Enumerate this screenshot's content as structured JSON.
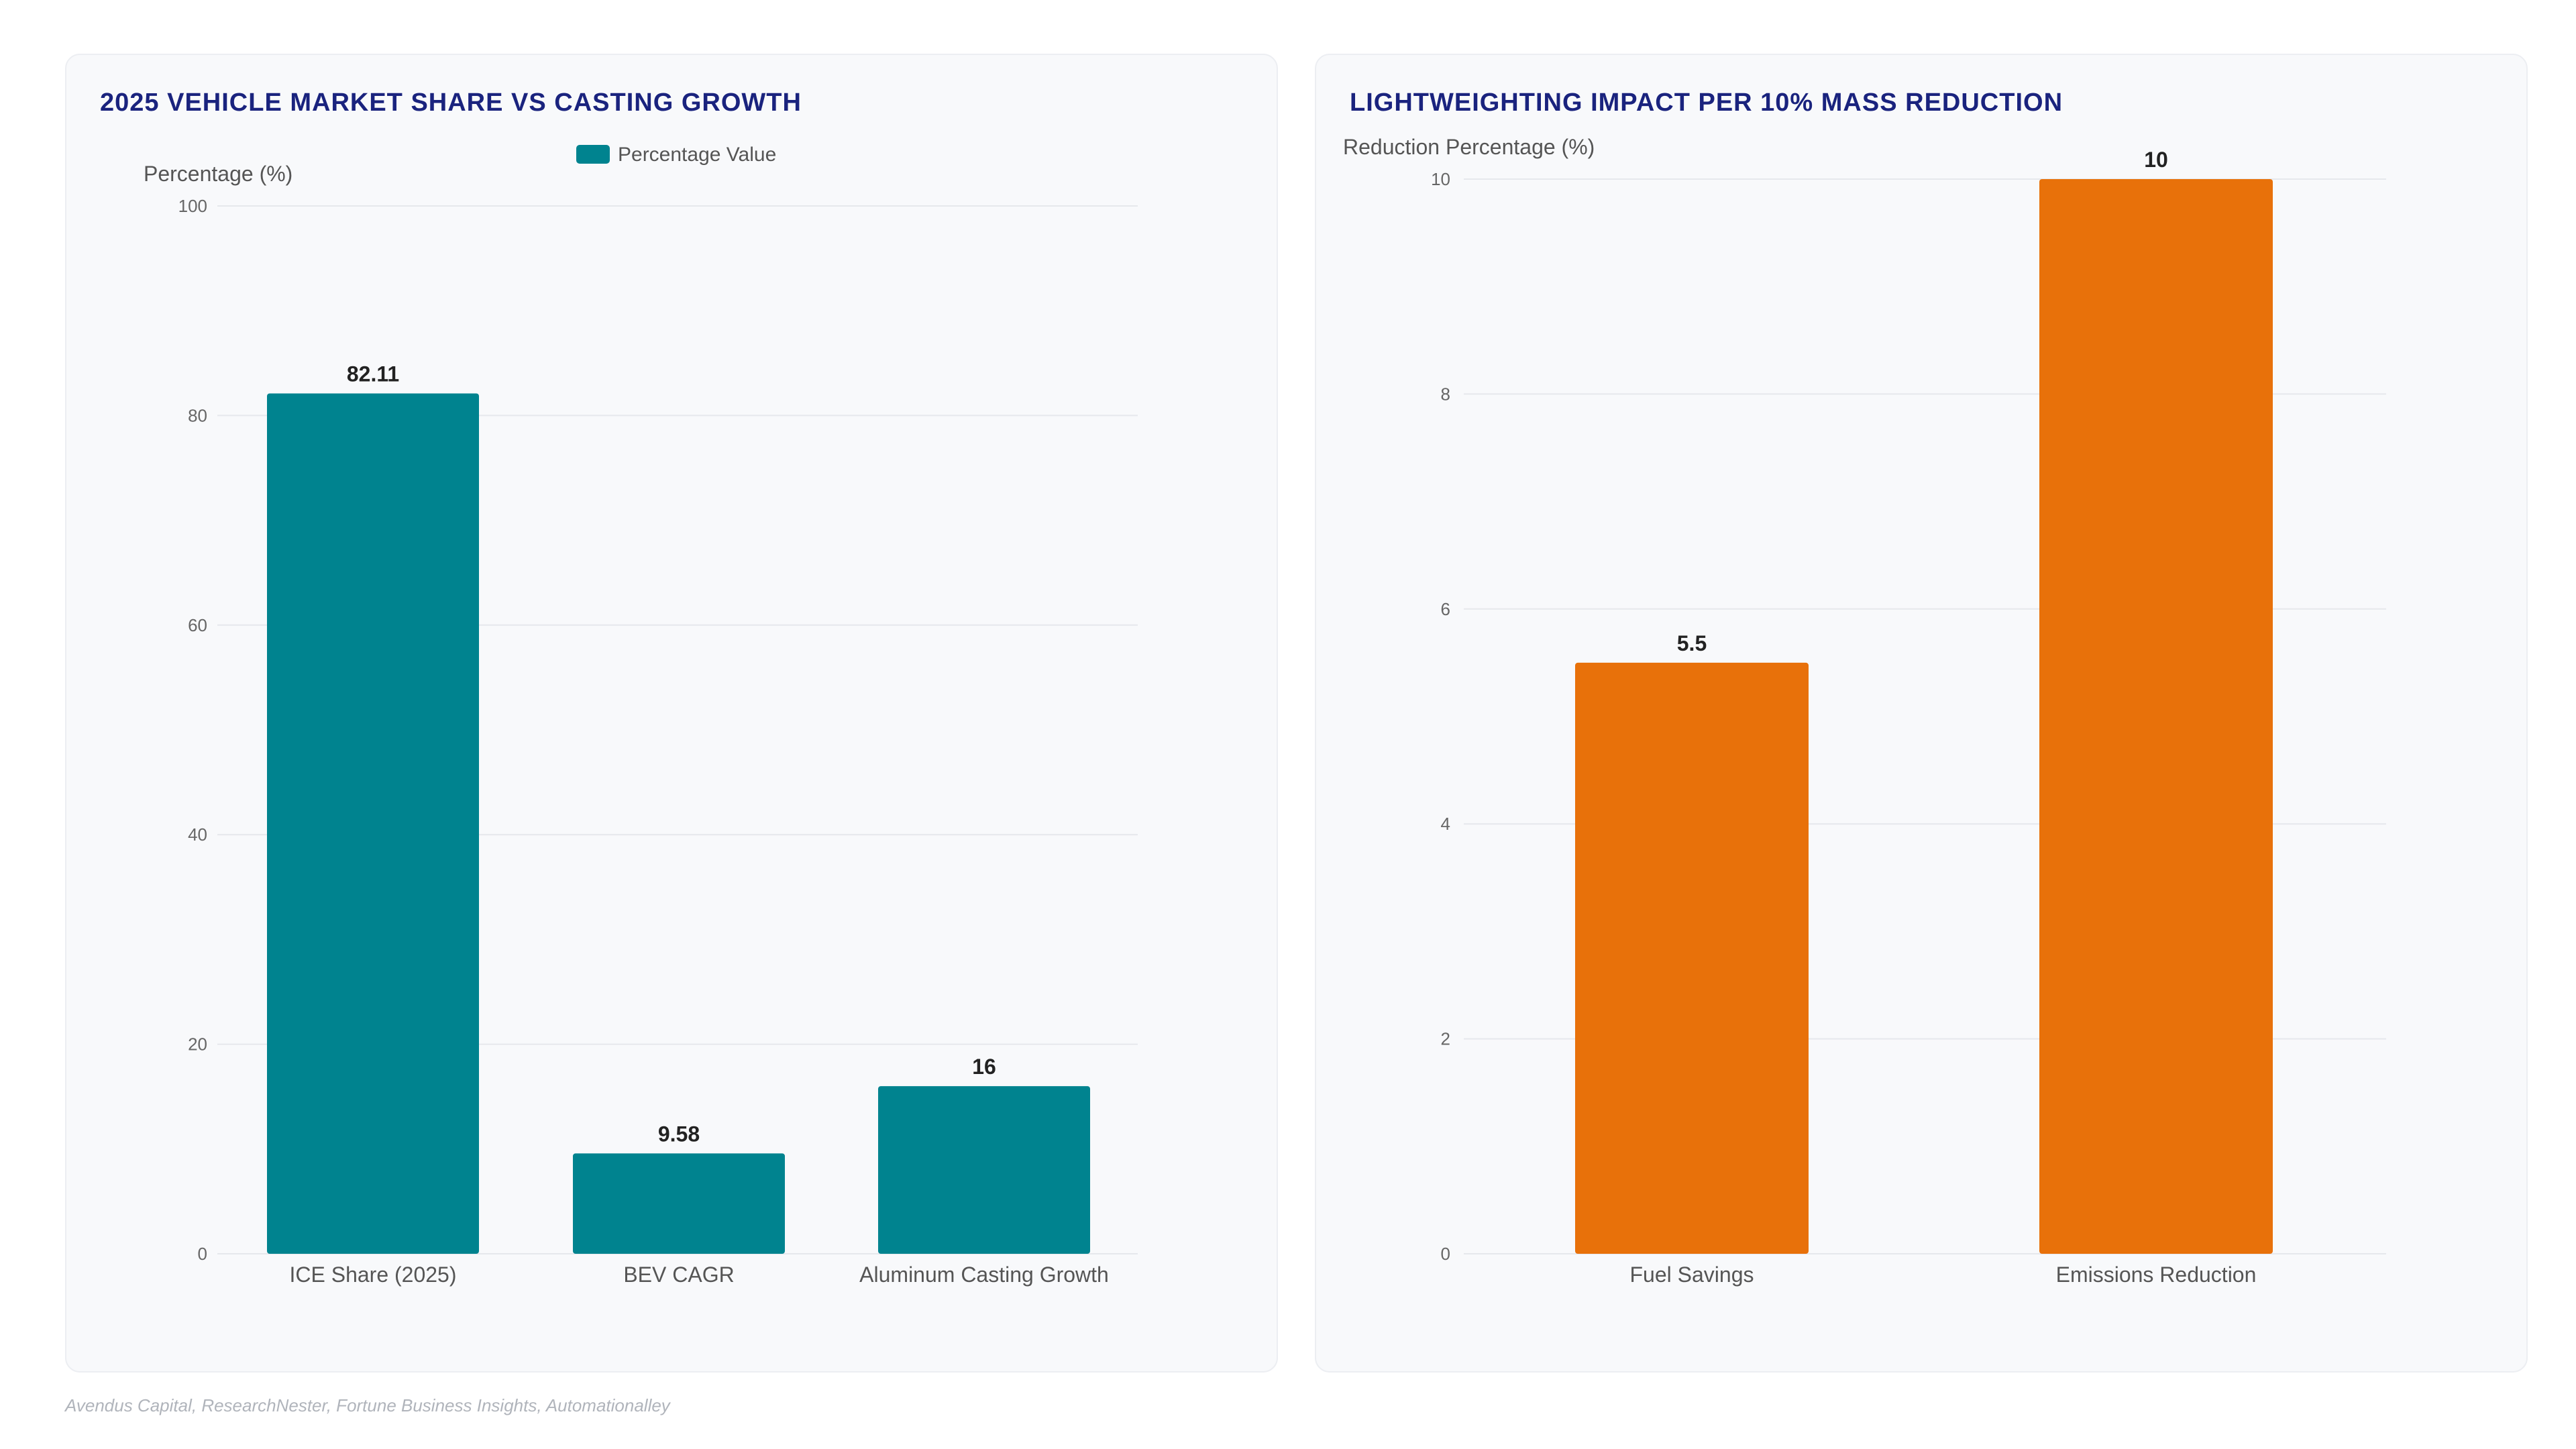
{
  "source_text": "Avendus Capital, ResearchNester, Fortune Business Insights, Automationalley",
  "colors": {
    "teal": "#00838f",
    "orange": "#e8710a",
    "title": "#1a237e",
    "grid": "#e6e8ec",
    "tick": "#666666",
    "value_label": "#222222"
  },
  "chart_data": [
    {
      "type": "bar",
      "title": "2025 VEHICLE MARKET SHARE VS CASTING GROWTH",
      "ylabel": "Percentage (%)",
      "xlabel": "",
      "legend": [
        "Percentage Value"
      ],
      "legend_position": "top-center",
      "categories": [
        "ICE Share (2025)",
        "BEV CAGR",
        "Aluminum Casting Growth"
      ],
      "series": [
        {
          "name": "Percentage Value",
          "values": [
            82.11,
            9.58,
            16
          ],
          "color": "#00838f"
        }
      ],
      "value_labels": [
        "82.11",
        "9.58",
        "16"
      ],
      "ylim": [
        0,
        100
      ],
      "yticks": [
        0,
        20,
        40,
        60,
        80,
        100
      ],
      "grid": true
    },
    {
      "type": "bar",
      "title": "LIGHTWEIGHTING IMPACT PER 10% MASS REDUCTION",
      "ylabel": "Reduction Percentage (%)",
      "xlabel": "",
      "legend": [],
      "categories": [
        "Fuel Savings",
        "Emissions Reduction"
      ],
      "series": [
        {
          "values": [
            5.5,
            10
          ],
          "color": "#e8710a"
        }
      ],
      "value_labels": [
        "5.5",
        "10"
      ],
      "ylim": [
        0,
        10
      ],
      "yticks": [
        0,
        2,
        4,
        6,
        8,
        10
      ],
      "grid": true
    }
  ]
}
